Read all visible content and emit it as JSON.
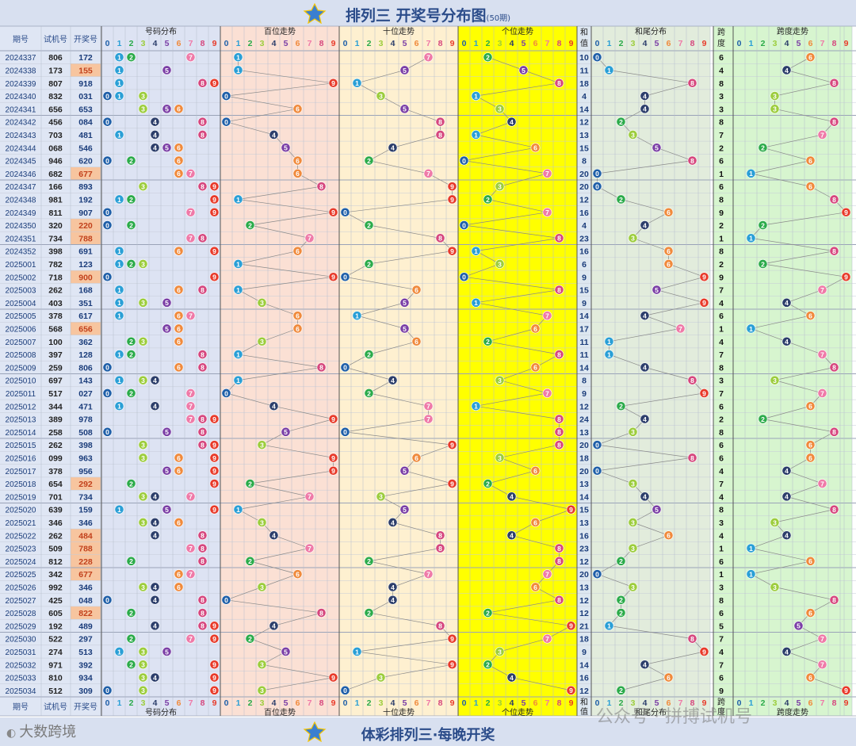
{
  "header": {
    "title": "排列三 开奖号分布图",
    "subtitle": "(50期)",
    "logo_text": "排列3"
  },
  "footer": {
    "slogan": "体彩排列三·每晚开奖",
    "brand": "大数跨境",
    "watermark": "公众号 · 拼搏试机号"
  },
  "columns": {
    "issue": "期号",
    "test": "试机号",
    "draw": "开奖号",
    "groups": [
      "号码分布",
      "百位走势",
      "十位走势",
      "个位走势",
      "和尾分布",
      "跨度走势"
    ],
    "sum_label": "和值",
    "span_label": "跨度",
    "digits": [
      "0",
      "1",
      "2",
      "3",
      "4",
      "5",
      "6",
      "7",
      "8",
      "9"
    ]
  },
  "colors": {
    "d0": "#1f5fa8",
    "d1": "#2a9fd6",
    "d2": "#2bab4a",
    "d3": "#9ccd3c",
    "d4": "#2c3e6b",
    "d5": "#7b3fa6",
    "d6": "#f08a3c",
    "d7": "#ef7aa8",
    "d8": "#d6477e",
    "d9": "#e83a2a",
    "sec_dist": "#dde3f3",
    "sec_bai": "#fbe0d4",
    "sec_shi": "#fef0d0",
    "sec_ge": "#ffff00",
    "sec_hw": "#e2ecdc",
    "sec_span": "#d7f5cf",
    "highlight": "#f7c59f",
    "title": "#2b4c8a"
  },
  "rows": [
    {
      "issue": "2024337",
      "test": "806",
      "draw": "172",
      "sum": "10",
      "span": "6",
      "hl": false
    },
    {
      "issue": "2024338",
      "test": "173",
      "draw": "155",
      "sum": "11",
      "span": "4",
      "hl": true
    },
    {
      "issue": "2024339",
      "test": "807",
      "draw": "918",
      "sum": "18",
      "span": "8",
      "hl": false
    },
    {
      "issue": "2024340",
      "test": "832",
      "draw": "031",
      "sum": "4",
      "span": "3",
      "hl": false
    },
    {
      "issue": "2024341",
      "test": "656",
      "draw": "653",
      "sum": "14",
      "span": "3",
      "hl": false
    },
    {
      "issue": "2024342",
      "test": "456",
      "draw": "084",
      "sum": "12",
      "span": "8",
      "hl": false
    },
    {
      "issue": "2024343",
      "test": "703",
      "draw": "481",
      "sum": "13",
      "span": "7",
      "hl": false
    },
    {
      "issue": "2024344",
      "test": "068",
      "draw": "546",
      "sum": "15",
      "span": "2",
      "hl": false
    },
    {
      "issue": "2024345",
      "test": "946",
      "draw": "620",
      "sum": "8",
      "span": "6",
      "hl": false
    },
    {
      "issue": "2024346",
      "test": "682",
      "draw": "677",
      "sum": "20",
      "span": "1",
      "hl": true
    },
    {
      "issue": "2024347",
      "test": "166",
      "draw": "893",
      "sum": "20",
      "span": "6",
      "hl": false
    },
    {
      "issue": "2024348",
      "test": "981",
      "draw": "192",
      "sum": "12",
      "span": "8",
      "hl": false
    },
    {
      "issue": "2024349",
      "test": "811",
      "draw": "907",
      "sum": "16",
      "span": "9",
      "hl": false
    },
    {
      "issue": "2024350",
      "test": "320",
      "draw": "220",
      "sum": "4",
      "span": "2",
      "hl": true
    },
    {
      "issue": "2024351",
      "test": "734",
      "draw": "788",
      "sum": "23",
      "span": "1",
      "hl": true
    },
    {
      "issue": "2024352",
      "test": "398",
      "draw": "691",
      "sum": "16",
      "span": "8",
      "hl": false
    },
    {
      "issue": "2025001",
      "test": "782",
      "draw": "123",
      "sum": "6",
      "span": "2",
      "hl": false
    },
    {
      "issue": "2025002",
      "test": "718",
      "draw": "900",
      "sum": "9",
      "span": "9",
      "hl": true
    },
    {
      "issue": "2025003",
      "test": "262",
      "draw": "168",
      "sum": "15",
      "span": "7",
      "hl": false
    },
    {
      "issue": "2025004",
      "test": "403",
      "draw": "351",
      "sum": "9",
      "span": "4",
      "hl": false
    },
    {
      "issue": "2025005",
      "test": "378",
      "draw": "617",
      "sum": "14",
      "span": "6",
      "hl": false
    },
    {
      "issue": "2025006",
      "test": "568",
      "draw": "656",
      "sum": "17",
      "span": "1",
      "hl": true
    },
    {
      "issue": "2025007",
      "test": "100",
      "draw": "362",
      "sum": "11",
      "span": "4",
      "hl": false
    },
    {
      "issue": "2025008",
      "test": "397",
      "draw": "128",
      "sum": "11",
      "span": "7",
      "hl": false
    },
    {
      "issue": "2025009",
      "test": "259",
      "draw": "806",
      "sum": "14",
      "span": "8",
      "hl": false
    },
    {
      "issue": "2025010",
      "test": "697",
      "draw": "143",
      "sum": "8",
      "span": "3",
      "hl": false
    },
    {
      "issue": "2025011",
      "test": "517",
      "draw": "027",
      "sum": "9",
      "span": "7",
      "hl": false
    },
    {
      "issue": "2025012",
      "test": "344",
      "draw": "471",
      "sum": "12",
      "span": "6",
      "hl": false
    },
    {
      "issue": "2025013",
      "test": "389",
      "draw": "978",
      "sum": "24",
      "span": "2",
      "hl": false
    },
    {
      "issue": "2025014",
      "test": "258",
      "draw": "508",
      "sum": "13",
      "span": "8",
      "hl": false
    },
    {
      "issue": "2025015",
      "test": "262",
      "draw": "398",
      "sum": "20",
      "span": "6",
      "hl": false
    },
    {
      "issue": "2025016",
      "test": "099",
      "draw": "963",
      "sum": "18",
      "span": "6",
      "hl": false
    },
    {
      "issue": "2025017",
      "test": "378",
      "draw": "956",
      "sum": "20",
      "span": "4",
      "hl": false
    },
    {
      "issue": "2025018",
      "test": "654",
      "draw": "292",
      "sum": "13",
      "span": "7",
      "hl": true
    },
    {
      "issue": "2025019",
      "test": "701",
      "draw": "734",
      "sum": "14",
      "span": "4",
      "hl": false
    },
    {
      "issue": "2025020",
      "test": "639",
      "draw": "159",
      "sum": "15",
      "span": "8",
      "hl": false
    },
    {
      "issue": "2025021",
      "test": "346",
      "draw": "346",
      "sum": "13",
      "span": "3",
      "hl": false
    },
    {
      "issue": "2025022",
      "test": "262",
      "draw": "484",
      "sum": "16",
      "span": "4",
      "hl": true
    },
    {
      "issue": "2025023",
      "test": "509",
      "draw": "788",
      "sum": "23",
      "span": "1",
      "hl": true
    },
    {
      "issue": "2025024",
      "test": "812",
      "draw": "228",
      "sum": "12",
      "span": "6",
      "hl": true
    },
    {
      "issue": "2025025",
      "test": "342",
      "draw": "677",
      "sum": "20",
      "span": "1",
      "hl": true
    },
    {
      "issue": "2025026",
      "test": "992",
      "draw": "346",
      "sum": "13",
      "span": "3",
      "hl": false
    },
    {
      "issue": "2025027",
      "test": "425",
      "draw": "048",
      "sum": "12",
      "span": "8",
      "hl": false
    },
    {
      "issue": "2025028",
      "test": "605",
      "draw": "822",
      "sum": "12",
      "span": "6",
      "hl": true
    },
    {
      "issue": "2025029",
      "test": "192",
      "draw": "489",
      "sum": "21",
      "span": "5",
      "hl": false
    },
    {
      "issue": "2025030",
      "test": "522",
      "draw": "297",
      "sum": "18",
      "span": "7",
      "hl": false
    },
    {
      "issue": "2025031",
      "test": "274",
      "draw": "513",
      "sum": "9",
      "span": "4",
      "hl": false
    },
    {
      "issue": "2025032",
      "test": "971",
      "draw": "392",
      "sum": "14",
      "span": "7",
      "hl": false
    },
    {
      "issue": "2025033",
      "test": "810",
      "draw": "934",
      "sum": "16",
      "span": "6",
      "hl": false
    },
    {
      "issue": "2025034",
      "test": "512",
      "draw": "309",
      "sum": "12",
      "span": "9",
      "hl": false
    }
  ]
}
